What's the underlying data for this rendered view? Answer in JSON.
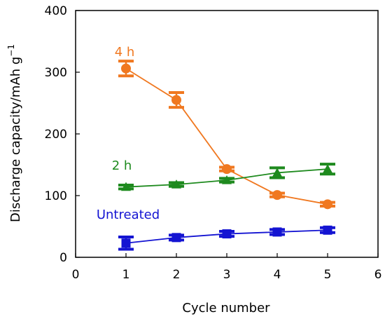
{
  "chart_data": {
    "type": "line",
    "xlabel": "Cycle number",
    "ylabel": "Discharge capacity/mAh g",
    "ylabel_superscript": "−1",
    "xlim": [
      0,
      6
    ],
    "ylim": [
      0,
      400
    ],
    "xticks": [
      0,
      1,
      2,
      3,
      4,
      5,
      6
    ],
    "yticks": [
      0,
      100,
      200,
      300,
      400
    ],
    "grid": false,
    "series": [
      {
        "name": "4 h",
        "color": "#F07820",
        "marker": "circle",
        "x": [
          1,
          2,
          3,
          4,
          5
        ],
        "y": [
          306,
          255,
          143,
          101,
          86
        ],
        "err": [
          12,
          12,
          3,
          3,
          3
        ]
      },
      {
        "name": "2 h",
        "color": "#1E8A1E",
        "marker": "triangle",
        "x": [
          1,
          2,
          3,
          4,
          5
        ],
        "y": [
          114,
          118,
          125,
          137,
          143
        ],
        "err": [
          3,
          3,
          3,
          8,
          8
        ]
      },
      {
        "name": "Untreated",
        "color": "#1414D2",
        "marker": "square",
        "x": [
          1,
          2,
          3,
          4,
          5
        ],
        "y": [
          23,
          32,
          38,
          41,
          44
        ],
        "err": [
          10,
          4,
          4,
          4,
          4
        ]
      }
    ]
  }
}
